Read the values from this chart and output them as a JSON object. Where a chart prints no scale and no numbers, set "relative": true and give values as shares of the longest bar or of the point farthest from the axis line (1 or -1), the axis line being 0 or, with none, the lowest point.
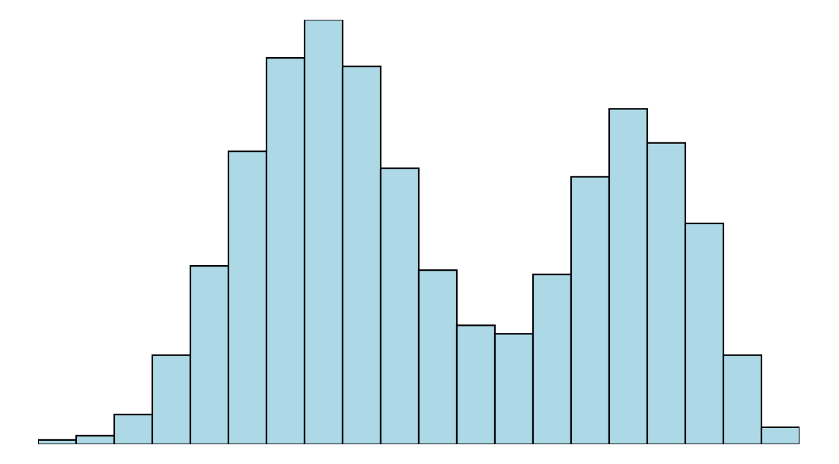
{
  "chart_data": {
    "type": "bar",
    "relative": true,
    "categories": [
      null,
      null,
      null,
      null,
      null,
      null,
      null,
      null,
      null,
      null,
      null,
      null,
      null,
      null,
      null,
      null,
      null,
      null,
      null,
      null
    ],
    "series": [
      {
        "color": "#add8e6",
        "values": [
          0.01,
          0.02,
          0.07,
          0.21,
          0.42,
          0.69,
          0.91,
          1,
          0.89,
          0.65,
          0.41,
          0.28,
          0.26,
          0.4,
          0.63,
          0.79,
          0.71,
          0.52,
          0.21,
          0.04
        ]
      }
    ],
    "legend": false
  }
}
